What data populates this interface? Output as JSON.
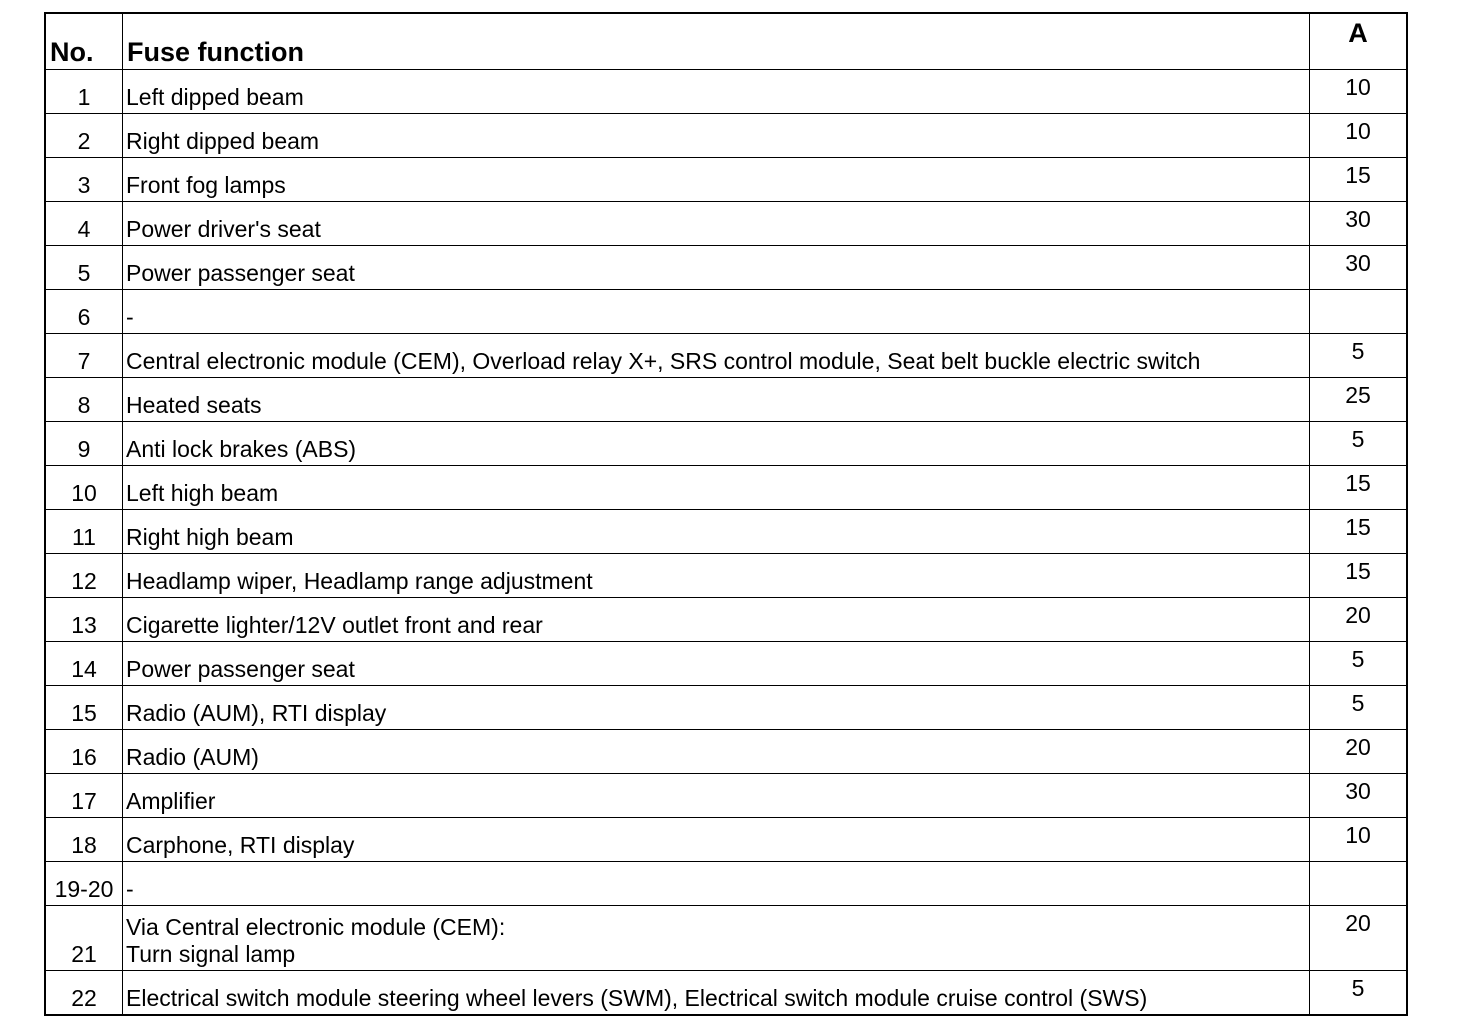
{
  "table": {
    "headers": {
      "no": "No.",
      "function": "Fuse function",
      "amps": "A"
    },
    "rows": [
      {
        "no": "1",
        "function": "Left dipped beam",
        "amps": "10"
      },
      {
        "no": "2",
        "function": "Right dipped beam",
        "amps": "10"
      },
      {
        "no": "3",
        "function": "Front fog lamps",
        "amps": "15"
      },
      {
        "no": "4",
        "function": "Power driver's seat",
        "amps": "30"
      },
      {
        "no": "5",
        "function": "Power passenger seat",
        "amps": "30"
      },
      {
        "no": "6",
        "function": "-",
        "amps": ""
      },
      {
        "no": "7",
        "function": "Central electronic module (CEM), Overload relay X+, SRS control module, Seat belt buckle electric switch",
        "amps": "5"
      },
      {
        "no": "8",
        "function": "Heated seats",
        "amps": "25"
      },
      {
        "no": "9",
        "function": "Anti lock brakes (ABS)",
        "amps": "5"
      },
      {
        "no": "10",
        "function": "Left high beam",
        "amps": "15"
      },
      {
        "no": "11",
        "function": "Right high beam",
        "amps": "15"
      },
      {
        "no": "12",
        "function": "Headlamp wiper, Headlamp range adjustment",
        "amps": "15"
      },
      {
        "no": "13",
        "function": "Cigarette lighter/12V outlet front and rear",
        "amps": "20"
      },
      {
        "no": "14",
        "function": "Power passenger seat",
        "amps": "5"
      },
      {
        "no": "15",
        "function": "Radio (AUM), RTI display",
        "amps": "5"
      },
      {
        "no": "16",
        "function": "Radio (AUM)",
        "amps": "20"
      },
      {
        "no": "17",
        "function": "Amplifier",
        "amps": "30"
      },
      {
        "no": "18",
        "function": "Carphone, RTI display",
        "amps": "10"
      },
      {
        "no": "19-20",
        "function": "-",
        "amps": ""
      },
      {
        "no": "21",
        "function": "Via Central electronic module (CEM):",
        "function_line2": "Turn signal lamp",
        "amps": "20"
      },
      {
        "no": "22",
        "function": "Electrical switch module steering wheel levers (SWM), Electrical switch module cruise control (SWS)",
        "amps": "5"
      }
    ]
  }
}
